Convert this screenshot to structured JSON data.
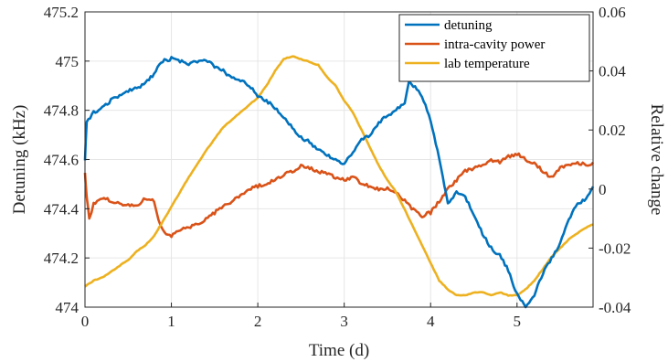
{
  "chart_data": {
    "type": "line",
    "xlabel": "Time (d)",
    "ylabel_left": "Detuning (kHz)",
    "ylabel_right": "Relative change",
    "xlim": [
      0,
      5.88
    ],
    "ylim_left": [
      474,
      475.2
    ],
    "ylim_right": [
      -0.04,
      0.06
    ],
    "x_ticks": [
      "0",
      "1",
      "2",
      "3",
      "4",
      "5"
    ],
    "y_ticks_left": [
      "474",
      "474.2",
      "474.4",
      "474.6",
      "474.8",
      "475",
      "475.2"
    ],
    "y_ticks_right": [
      "-0.04",
      "-0.02",
      "0",
      "0.02",
      "0.04",
      "0.06"
    ],
    "grid": true,
    "legend_position": "top-right",
    "series": [
      {
        "name": "detuning",
        "axis": "left",
        "color": "#0072BD",
        "x": [
          0,
          0.02,
          0.1,
          0.2,
          0.3,
          0.4,
          0.5,
          0.6,
          0.7,
          0.8,
          0.9,
          1.0,
          1.1,
          1.2,
          1.3,
          1.4,
          1.5,
          1.6,
          1.7,
          1.8,
          1.9,
          2.0,
          2.1,
          2.2,
          2.3,
          2.4,
          2.5,
          2.6,
          2.7,
          2.8,
          2.9,
          3.0,
          3.1,
          3.2,
          3.3,
          3.4,
          3.5,
          3.6,
          3.7,
          3.75,
          3.8,
          3.9,
          4.0,
          4.1,
          4.2,
          4.3,
          4.4,
          4.5,
          4.6,
          4.7,
          4.8,
          4.9,
          5.0,
          5.1,
          5.2,
          5.3,
          5.4,
          5.5,
          5.6,
          5.7,
          5.8,
          5.88
        ],
        "y": [
          474.6,
          474.75,
          474.79,
          474.81,
          474.84,
          474.86,
          474.88,
          474.89,
          474.91,
          474.95,
          475.0,
          475.01,
          475.0,
          474.99,
          475.0,
          475.0,
          474.98,
          474.96,
          474.93,
          474.92,
          474.9,
          474.86,
          474.84,
          474.81,
          474.77,
          474.73,
          474.69,
          474.67,
          474.64,
          474.62,
          474.6,
          474.58,
          474.63,
          474.68,
          474.7,
          474.75,
          474.78,
          474.8,
          474.83,
          474.92,
          474.9,
          474.86,
          474.76,
          474.6,
          474.42,
          474.47,
          474.45,
          474.38,
          474.3,
          474.24,
          474.21,
          474.15,
          474.05,
          474.0,
          474.05,
          474.14,
          474.2,
          474.26,
          474.36,
          474.42,
          474.44,
          474.49
        ]
      },
      {
        "name": "intra-cavity power",
        "axis": "right",
        "color": "#D95319",
        "x": [
          0,
          0.02,
          0.05,
          0.1,
          0.2,
          0.3,
          0.4,
          0.5,
          0.6,
          0.7,
          0.8,
          0.85,
          0.9,
          1.0,
          1.1,
          1.2,
          1.3,
          1.4,
          1.5,
          1.6,
          1.7,
          1.8,
          1.9,
          2.0,
          2.1,
          2.2,
          2.3,
          2.4,
          2.5,
          2.6,
          2.7,
          2.8,
          2.9,
          3.0,
          3.1,
          3.2,
          3.3,
          3.4,
          3.5,
          3.6,
          3.7,
          3.8,
          3.9,
          4.0,
          4.1,
          4.2,
          4.3,
          4.4,
          4.5,
          4.6,
          4.7,
          4.8,
          4.9,
          5.0,
          5.1,
          5.2,
          5.3,
          5.4,
          5.5,
          5.6,
          5.7,
          5.8,
          5.88
        ],
        "y": [
          0.005,
          -0.003,
          -0.01,
          -0.005,
          -0.003,
          -0.004,
          -0.005,
          -0.005,
          -0.006,
          -0.003,
          -0.004,
          -0.01,
          -0.014,
          -0.016,
          -0.014,
          -0.013,
          -0.012,
          -0.01,
          -0.008,
          -0.006,
          -0.004,
          -0.002,
          0.0,
          0.001,
          0.002,
          0.003,
          0.005,
          0.006,
          0.008,
          0.007,
          0.006,
          0.005,
          0.004,
          0.003,
          0.004,
          0.002,
          0.001,
          0.0,
          0.0,
          -0.001,
          -0.004,
          -0.007,
          -0.009,
          -0.008,
          -0.004,
          0.0,
          0.003,
          0.006,
          0.007,
          0.008,
          0.01,
          0.009,
          0.011,
          0.012,
          0.01,
          0.009,
          0.006,
          0.004,
          0.007,
          0.008,
          0.009,
          0.008,
          0.009
        ]
      },
      {
        "name": "lab temperature",
        "axis": "right",
        "color": "#EDB120",
        "x": [
          0,
          0.1,
          0.2,
          0.3,
          0.4,
          0.5,
          0.6,
          0.7,
          0.8,
          0.9,
          1.0,
          1.2,
          1.4,
          1.6,
          1.8,
          2.0,
          2.1,
          2.2,
          2.3,
          2.4,
          2.5,
          2.6,
          2.7,
          2.8,
          2.9,
          3.0,
          3.1,
          3.2,
          3.3,
          3.4,
          3.5,
          3.6,
          3.7,
          3.8,
          3.9,
          4.0,
          4.1,
          4.2,
          4.3,
          4.4,
          4.5,
          4.6,
          4.7,
          4.8,
          4.9,
          5.0,
          5.1,
          5.2,
          5.3,
          5.4,
          5.5,
          5.6,
          5.7,
          5.8,
          5.88
        ],
        "y": [
          -0.033,
          -0.031,
          -0.03,
          -0.028,
          -0.026,
          -0.024,
          -0.021,
          -0.019,
          -0.016,
          -0.011,
          -0.006,
          0.004,
          0.013,
          0.021,
          0.026,
          0.031,
          0.035,
          0.04,
          0.044,
          0.045,
          0.044,
          0.043,
          0.042,
          0.038,
          0.035,
          0.03,
          0.026,
          0.02,
          0.014,
          0.008,
          0.003,
          -0.001,
          -0.007,
          -0.013,
          -0.019,
          -0.025,
          -0.031,
          -0.034,
          -0.036,
          -0.036,
          -0.035,
          -0.035,
          -0.036,
          -0.035,
          -0.036,
          -0.036,
          -0.034,
          -0.031,
          -0.027,
          -0.023,
          -0.02,
          -0.017,
          -0.015,
          -0.013,
          -0.012
        ]
      }
    ]
  }
}
